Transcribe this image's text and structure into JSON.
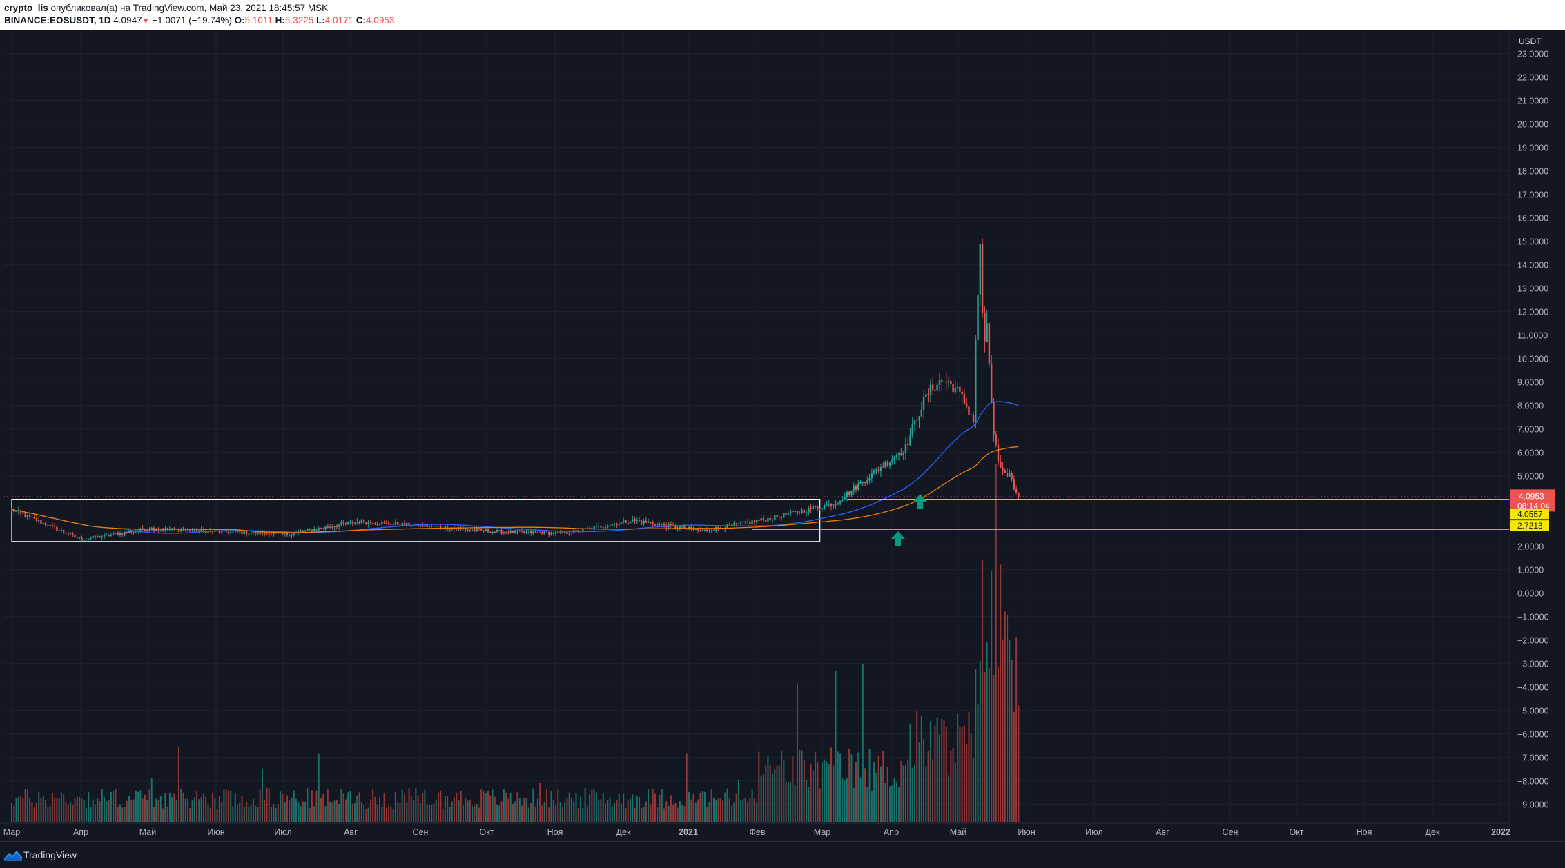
{
  "header": {
    "author": "crypto_lis",
    "published": "опубликовал(а) на TradingView.com, Май 23, 2021 18:45:57 MSK",
    "symbol": "BINANCE:EOSUSDT, 1D",
    "price": "4.0947",
    "change": "−1.0071 (−19.74%)",
    "o_label": "O:",
    "o_value": "5.1011",
    "h_label": "H:",
    "h_value": "5.3225",
    "l_label": "L:",
    "l_value": "4.0171",
    "c_label": "C:",
    "c_value": "4.0953"
  },
  "footer": {
    "brand": "TradingView"
  },
  "colors": {
    "up": "#26a69a",
    "down": "#ef5350",
    "background": "#131722",
    "ma_fast": "#2962ff",
    "ma_slow": "#f57c00",
    "hline": "#f5e701"
  },
  "chart_data": {
    "type": "candlestick",
    "symbol": "BINANCE:EOSUSDT",
    "interval": "1D",
    "currency": "USDT",
    "y_ticks": [
      23,
      22,
      21,
      20,
      19,
      18,
      17,
      16,
      15,
      14,
      13,
      12,
      11,
      10,
      9,
      8,
      7,
      6,
      5,
      2,
      1,
      0,
      -1,
      -2,
      -3,
      -4,
      -5,
      -6,
      -7,
      -8,
      -9
    ],
    "y_tick_labels": [
      "23.0000",
      "22.0000",
      "21.0000",
      "20.0000",
      "19.0000",
      "18.0000",
      "17.0000",
      "16.0000",
      "15.0000",
      "14.0000",
      "13.0000",
      "12.0000",
      "11.0000",
      "10.0000",
      "9.0000",
      "8.0000",
      "7.0000",
      "6.0000",
      "5.0000",
      "2.0000",
      "1.0000",
      "0.0000",
      "−1.0000",
      "−2.0000",
      "−3.0000",
      "−4.0000",
      "−5.0000",
      "−6.0000",
      "−7.0000",
      "−8.0000",
      "−9.0000"
    ],
    "ylim": [
      -9.6,
      23.6
    ],
    "x_labels": [
      "Мар",
      "Апр",
      "Май",
      "Июн",
      "Июл",
      "Авг",
      "Сен",
      "Окт",
      "Ноя",
      "Дек",
      "2021",
      "Фев",
      "Мар",
      "Апр",
      "Май",
      "Июн",
      "Июл",
      "Авг",
      "Сен",
      "Окт",
      "Ноя",
      "Дек",
      "2022"
    ],
    "price_path": [
      [
        "Мар",
        3.55
      ],
      [
        "Апр",
        2.28
      ],
      [
        "Май",
        2.75
      ],
      [
        "Июн",
        2.62
      ],
      [
        "Июл",
        2.5
      ],
      [
        "Авг",
        3.05
      ],
      [
        "Сен",
        2.85
      ],
      [
        "Окт",
        2.62
      ],
      [
        "Ноя",
        2.55
      ],
      [
        "Дек",
        3.1
      ],
      [
        "2021",
        2.65
      ],
      [
        "Фев",
        3.2
      ],
      [
        "Мар",
        3.85
      ],
      [
        "Апр",
        6.2
      ],
      [
        "Май",
        9.5
      ]
    ],
    "peak": 14.9,
    "last_price": 4.0953,
    "last_label": "4.0953",
    "countdown": "08:14:04",
    "level_labels": [
      "4.0557",
      "2.7213"
    ],
    "levels": [
      4.0557,
      2.7213
    ],
    "range_box": {
      "from": "Мар",
      "to": "Мар",
      "top": 4.0,
      "bottom": 2.2
    },
    "annotations": [
      "up-arrow-1",
      "up-arrow-2"
    ],
    "legend": "none",
    "grid": true
  }
}
